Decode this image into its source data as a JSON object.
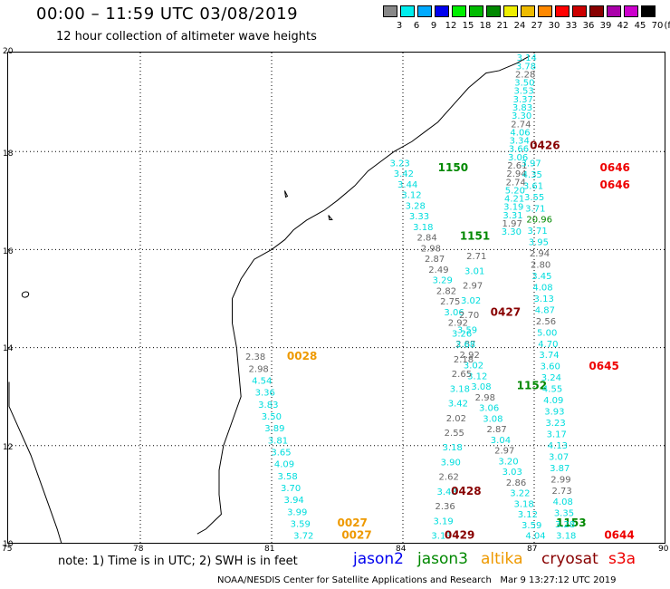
{
  "header": {
    "title": "00:00 – 11:59 UTC 03/08/2019",
    "subtitle": "12 hour collection of altimeter wave heights"
  },
  "color_scale": {
    "unit": "(ft)",
    "bins": [
      {
        "label": "3",
        "color": "#888888"
      },
      {
        "label": "6",
        "color": "#00eeee"
      },
      {
        "label": "9",
        "color": "#00aaff"
      },
      {
        "label": "12",
        "color": "#0000ee"
      },
      {
        "label": "15",
        "color": "#00ee00"
      },
      {
        "label": "18",
        "color": "#00bb00"
      },
      {
        "label": "21",
        "color": "#008800"
      },
      {
        "label": "24",
        "color": "#eeee00"
      },
      {
        "label": "27",
        "color": "#eebb00"
      },
      {
        "label": "30",
        "color": "#ff8800"
      },
      {
        "label": "33",
        "color": "#ff0000"
      },
      {
        "label": "36",
        "color": "#cc0000"
      },
      {
        "label": "39",
        "color": "#880000"
      },
      {
        "label": "42",
        "color": "#aa00aa"
      },
      {
        "label": "45",
        "color": "#cc00cc"
      },
      {
        "label": "70",
        "color": "#000000"
      }
    ]
  },
  "map": {
    "lon_range": [
      75,
      90
    ],
    "lat_range": [
      10,
      20
    ],
    "lon_ticks": [
      "75",
      "78",
      "81",
      "84",
      "87",
      "90"
    ],
    "lat_ticks": [
      "20",
      "18",
      "16",
      "14",
      "12",
      "10"
    ],
    "tracks": [
      {
        "satellite": "altika",
        "color": "#ee9900",
        "time_labels": [
          "0028",
          "0027",
          "0027"
        ],
        "values": [
          {
            "text": "2.38",
            "c": "gray"
          },
          {
            "text": "2.98",
            "c": "gray"
          },
          {
            "text": "4.54",
            "c": "cyan"
          },
          {
            "text": "3.36",
            "c": "cyan"
          },
          {
            "text": "3.83",
            "c": "cyan"
          },
          {
            "text": "3.50",
            "c": "cyan"
          },
          {
            "text": "3.89",
            "c": "cyan"
          },
          {
            "text": "3.81",
            "c": "cyan"
          },
          {
            "text": "3.65",
            "c": "cyan"
          },
          {
            "text": "4.09",
            "c": "cyan"
          },
          {
            "text": "3.58",
            "c": "cyan"
          },
          {
            "text": "3.70",
            "c": "cyan"
          },
          {
            "text": "3.94",
            "c": "cyan"
          },
          {
            "text": "3.99",
            "c": "cyan"
          },
          {
            "text": "3.59",
            "c": "cyan"
          },
          {
            "text": "3.72",
            "c": "cyan"
          }
        ]
      },
      {
        "satellite": "jason3",
        "color": "#008800",
        "time_labels": [
          "1150",
          "1151",
          "1152",
          "1153"
        ],
        "values": [
          {
            "text": "3.23",
            "c": "cyan"
          },
          {
            "text": "3.42",
            "c": "cyan"
          },
          {
            "text": "3.44",
            "c": "cyan"
          },
          {
            "text": "3.12",
            "c": "cyan"
          },
          {
            "text": "3.28",
            "c": "cyan"
          },
          {
            "text": "3.33",
            "c": "cyan"
          },
          {
            "text": "3.18",
            "c": "cyan"
          },
          {
            "text": "2.84",
            "c": "gray"
          },
          {
            "text": "2.98",
            "c": "gray"
          },
          {
            "text": "2.87",
            "c": "gray"
          },
          {
            "text": "2.49",
            "c": "gray"
          },
          {
            "text": "3.29",
            "c": "cyan"
          },
          {
            "text": "2.82",
            "c": "gray"
          },
          {
            "text": "2.75",
            "c": "gray"
          },
          {
            "text": "3.06",
            "c": "cyan"
          },
          {
            "text": "2.92",
            "c": "gray"
          },
          {
            "text": "3.26",
            "c": "cyan"
          },
          {
            "text": "2.87",
            "c": "gray"
          },
          {
            "text": "2.92",
            "c": "gray"
          },
          {
            "text": "3.02",
            "c": "cyan"
          },
          {
            "text": "3.12",
            "c": "cyan"
          },
          {
            "text": "3.08",
            "c": "cyan"
          },
          {
            "text": "2.98",
            "c": "gray"
          },
          {
            "text": "3.06",
            "c": "cyan"
          },
          {
            "text": "3.08",
            "c": "cyan"
          },
          {
            "text": "2.87",
            "c": "gray"
          },
          {
            "text": "3.04",
            "c": "cyan"
          },
          {
            "text": "2.97",
            "c": "gray"
          },
          {
            "text": "3.20",
            "c": "cyan"
          },
          {
            "text": "3.03",
            "c": "cyan"
          },
          {
            "text": "2.86",
            "c": "gray"
          },
          {
            "text": "3.22",
            "c": "cyan"
          },
          {
            "text": "3.18",
            "c": "cyan"
          },
          {
            "text": "3.12",
            "c": "cyan"
          },
          {
            "text": "3.59",
            "c": "cyan"
          },
          {
            "text": "4.04",
            "c": "cyan"
          }
        ]
      },
      {
        "satellite": "saral-mid",
        "color": "#000000",
        "time_labels": [],
        "values": [
          {
            "text": "2.71",
            "c": "gray"
          },
          {
            "text": "3.01",
            "c": "cyan"
          },
          {
            "text": "2.97",
            "c": "gray"
          },
          {
            "text": "3.02",
            "c": "cyan"
          },
          {
            "text": "2.70",
            "c": "gray"
          },
          {
            "text": "3.59",
            "c": "cyan"
          },
          {
            "text": "3.68",
            "c": "cyan"
          },
          {
            "text": "2.18",
            "c": "gray"
          },
          {
            "text": "2.65",
            "c": "gray"
          },
          {
            "text": "3.18",
            "c": "cyan"
          },
          {
            "text": "3.42",
            "c": "cyan"
          },
          {
            "text": "2.02",
            "c": "gray"
          },
          {
            "text": "2.55",
            "c": "gray"
          },
          {
            "text": "3.18",
            "c": "cyan"
          },
          {
            "text": "3.90",
            "c": "cyan"
          },
          {
            "text": "2.62",
            "c": "gray"
          },
          {
            "text": "3.48",
            "c": "cyan"
          },
          {
            "text": "2.36",
            "c": "gray"
          },
          {
            "text": "3.19",
            "c": "cyan"
          },
          {
            "text": "3.13",
            "c": "cyan"
          }
        ]
      },
      {
        "satellite": "cryosat",
        "color": "#880000",
        "time_labels": [
          "0426",
          "0427",
          "0428",
          "0429"
        ],
        "values": [
          {
            "text": "3.14",
            "c": "cyan"
          },
          {
            "text": "3.78",
            "c": "cyan"
          },
          {
            "text": "2.28",
            "c": "gray"
          },
          {
            "text": "3.50",
            "c": "cyan"
          },
          {
            "text": "3.53",
            "c": "cyan"
          },
          {
            "text": "3.37",
            "c": "cyan"
          },
          {
            "text": "3.83",
            "c": "cyan"
          },
          {
            "text": "3.30",
            "c": "cyan"
          },
          {
            "text": "2.74",
            "c": "gray"
          },
          {
            "text": "4.06",
            "c": "cyan"
          },
          {
            "text": "3.34",
            "c": "cyan"
          },
          {
            "text": "3.66",
            "c": "cyan"
          },
          {
            "text": "3.06",
            "c": "cyan"
          },
          {
            "text": "2.61",
            "c": "gray"
          },
          {
            "text": "2.94",
            "c": "gray"
          },
          {
            "text": "2.74",
            "c": "gray"
          },
          {
            "text": "5.20",
            "c": "cyan"
          },
          {
            "text": "4.21",
            "c": "cyan"
          },
          {
            "text": "3.19",
            "c": "cyan"
          },
          {
            "text": "3.31",
            "c": "cyan"
          },
          {
            "text": "1.97",
            "c": "gray"
          },
          {
            "text": "3.30",
            "c": "cyan"
          }
        ]
      },
      {
        "satellite": "s3a",
        "color": "#ee0000",
        "time_labels": [
          "0646",
          "0646",
          "0645",
          "0644"
        ],
        "values": [
          {
            "text": "3.97",
            "c": "cyan"
          },
          {
            "text": "4.35",
            "c": "cyan"
          },
          {
            "text": "3.61",
            "c": "cyan"
          },
          {
            "text": "3.55",
            "c": "cyan"
          },
          {
            "text": "3.71",
            "c": "cyan"
          },
          {
            "text": "20.96",
            "c": "green"
          },
          {
            "text": "3.71",
            "c": "cyan"
          },
          {
            "text": "3.95",
            "c": "cyan"
          },
          {
            "text": "2.94",
            "c": "gray"
          },
          {
            "text": "2.80",
            "c": "gray"
          },
          {
            "text": "3.45",
            "c": "cyan"
          },
          {
            "text": "4.08",
            "c": "cyan"
          },
          {
            "text": "3.13",
            "c": "cyan"
          },
          {
            "text": "4.87",
            "c": "cyan"
          },
          {
            "text": "2.56",
            "c": "gray"
          },
          {
            "text": "5.00",
            "c": "cyan"
          },
          {
            "text": "4.70",
            "c": "cyan"
          },
          {
            "text": "3.74",
            "c": "cyan"
          },
          {
            "text": "3.60",
            "c": "cyan"
          },
          {
            "text": "3.24",
            "c": "cyan"
          },
          {
            "text": "4.55",
            "c": "cyan"
          },
          {
            "text": "4.09",
            "c": "cyan"
          },
          {
            "text": "3.93",
            "c": "cyan"
          },
          {
            "text": "3.23",
            "c": "cyan"
          },
          {
            "text": "3.17",
            "c": "cyan"
          },
          {
            "text": "4.13",
            "c": "cyan"
          },
          {
            "text": "3.07",
            "c": "cyan"
          },
          {
            "text": "3.87",
            "c": "cyan"
          },
          {
            "text": "2.99",
            "c": "gray"
          },
          {
            "text": "2.73",
            "c": "gray"
          },
          {
            "text": "4.08",
            "c": "cyan"
          },
          {
            "text": "3.35",
            "c": "cyan"
          },
          {
            "text": "3.28",
            "c": "cyan"
          },
          {
            "text": "3.18",
            "c": "cyan"
          }
        ]
      }
    ]
  },
  "note": "note:  1) Time is in UTC;  2) SWH is in feet",
  "legend": [
    {
      "label": "jason2",
      "color": "#0000ee"
    },
    {
      "label": "jason3",
      "color": "#008800"
    },
    {
      "label": "altika",
      "color": "#ee9900"
    },
    {
      "label": "cryosat",
      "color": "#880000"
    },
    {
      "label": "s3a",
      "color": "#ee0000"
    }
  ],
  "footer": {
    "credit": "NOAA/NESDIS Center for Satellite Applications and Research",
    "timestamp": "Mar  9 13:27:12 UTC 2019"
  },
  "value_colors": {
    "gray": "#666666",
    "cyan": "#00dddd",
    "green": "#008800"
  }
}
